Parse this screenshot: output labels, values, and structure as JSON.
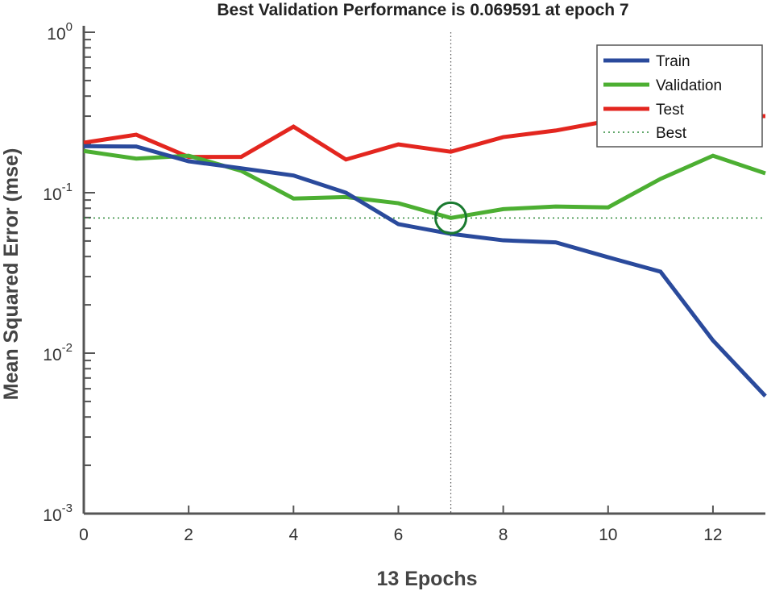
{
  "chart_data": {
    "type": "line",
    "title": "Best Validation Performance is 0.069591 at epoch 7",
    "xlabel": "13 Epochs",
    "ylabel": "Mean Squared Error  (mse)",
    "xlim": [
      0,
      13
    ],
    "ylim": [
      0.001,
      1
    ],
    "yscale": "log",
    "xticks": [
      0,
      2,
      4,
      6,
      8,
      10,
      12
    ],
    "yticks": [
      {
        "base": "10",
        "exp": "0"
      },
      {
        "base": "10",
        "exp": "-1"
      },
      {
        "base": "10",
        "exp": "-2"
      },
      {
        "base": "10",
        "exp": "-3"
      }
    ],
    "grid": false,
    "legend_position": "top-right",
    "x": [
      0,
      1,
      2,
      3,
      4,
      5,
      6,
      7,
      8,
      9,
      10,
      11,
      12,
      13
    ],
    "series": [
      {
        "name": "Train",
        "color": "#2a4a9c",
        "values": [
          0.195,
          0.194,
          0.157,
          0.142,
          0.128,
          0.1,
          0.0637,
          0.0554,
          0.0505,
          0.049,
          0.0396,
          0.0322,
          0.012,
          0.0054
        ]
      },
      {
        "name": "Validation",
        "color": "#4caf32",
        "values": [
          0.182,
          0.163,
          0.17,
          0.137,
          0.092,
          0.094,
          0.086,
          0.069591,
          0.079,
          0.082,
          0.081,
          0.122,
          0.17,
          0.132
        ]
      },
      {
        "name": "Test",
        "color": "#e3261f",
        "values": [
          0.205,
          0.23,
          0.167,
          0.167,
          0.258,
          0.161,
          0.2,
          0.18,
          0.222,
          0.244,
          0.28,
          0.3,
          0.3,
          0.3
        ]
      }
    ],
    "best": {
      "name": "Best",
      "epoch": 7,
      "value": 0.069591,
      "color": "#2e8b3a",
      "circle_color": "#1a7a30"
    }
  }
}
